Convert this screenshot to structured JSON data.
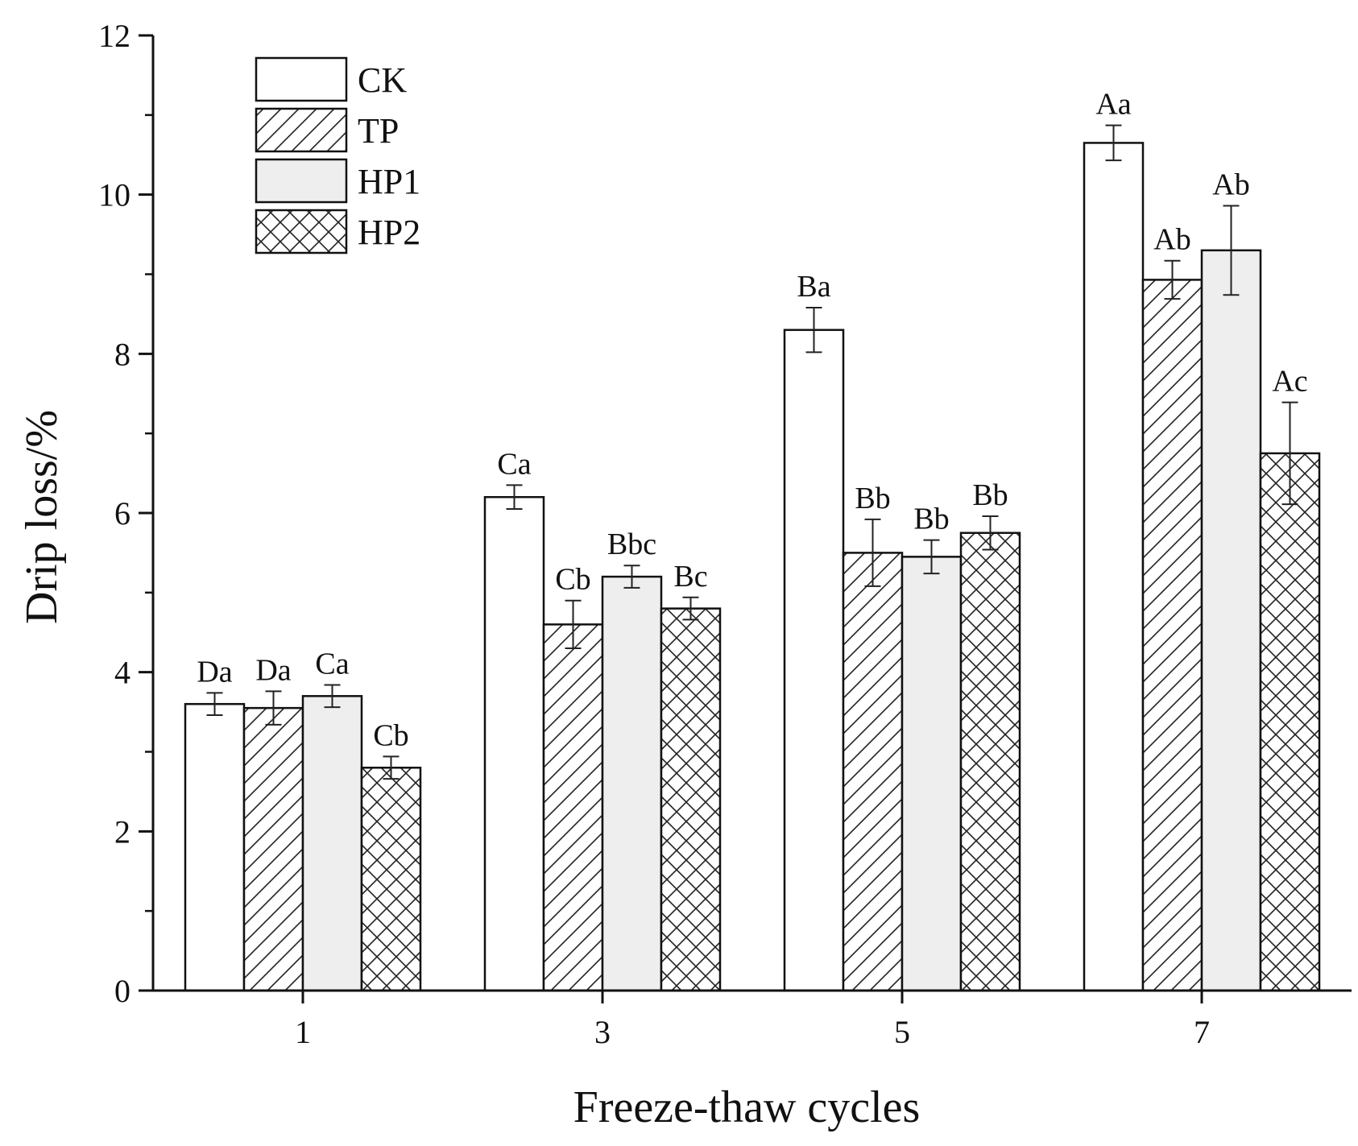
{
  "chart_data": {
    "type": "bar",
    "title": "",
    "xlabel": "Freeze-thaw cycles",
    "ylabel": "Drip loss/%",
    "ylim": [
      0,
      12
    ],
    "yticks": [
      0,
      2,
      4,
      6,
      8,
      10,
      12
    ],
    "categories": [
      "1",
      "3",
      "5",
      "7"
    ],
    "legend_position": "top-left",
    "series": [
      {
        "name": "CK",
        "pattern": "none",
        "fill": "#ffffff",
        "values": [
          3.6,
          6.2,
          8.3,
          10.65
        ],
        "errors": [
          0.14,
          0.15,
          0.28,
          0.22
        ],
        "labels": [
          "Da",
          "Ca",
          "Ba",
          "Aa"
        ]
      },
      {
        "name": "TP",
        "pattern": "diagonal",
        "fill": "#ffffff",
        "values": [
          3.55,
          4.6,
          5.5,
          8.93
        ],
        "errors": [
          0.21,
          0.3,
          0.42,
          0.24
        ],
        "labels": [
          "Da",
          "Cb",
          "Bb",
          "Ab"
        ]
      },
      {
        "name": "HP1",
        "pattern": "solid",
        "fill": "#eeeeee",
        "values": [
          3.7,
          5.2,
          5.45,
          9.3
        ],
        "errors": [
          0.14,
          0.14,
          0.21,
          0.56
        ],
        "labels": [
          "Ca",
          "Bbc",
          "Bb",
          "Ab"
        ]
      },
      {
        "name": "HP2",
        "pattern": "crosshatch",
        "fill": "#ffffff",
        "values": [
          2.8,
          4.8,
          5.75,
          6.75
        ],
        "errors": [
          0.14,
          0.14,
          0.21,
          0.64
        ],
        "labels": [
          "Cb",
          "Bc",
          "Bb",
          "Ac"
        ]
      }
    ]
  }
}
